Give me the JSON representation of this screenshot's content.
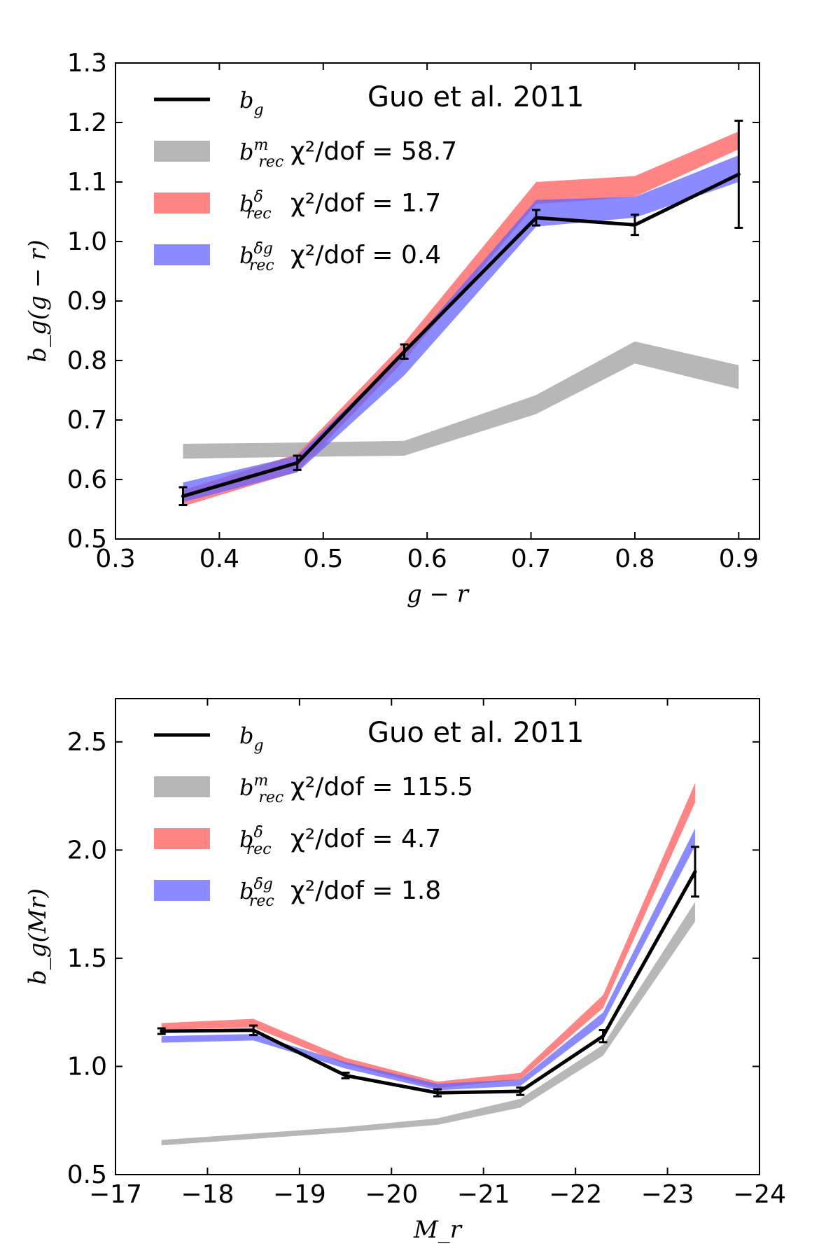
{
  "chart_data": [
    {
      "type": "line",
      "annotation": "Guo et al. 2011",
      "xlabel": "g − r",
      "ylabel": "b_g(g − r)",
      "xlim": [
        0.3,
        0.92
      ],
      "ylim": [
        0.5,
        1.3
      ],
      "xticks": [
        0.3,
        0.4,
        0.5,
        0.6,
        0.7,
        0.8,
        0.9
      ],
      "yticks": [
        0.5,
        0.6,
        0.7,
        0.8,
        0.9,
        1.0,
        1.1,
        1.2,
        1.3
      ],
      "xtick_labels": [
        "0.3",
        "0.4",
        "0.5",
        "0.6",
        "0.7",
        "0.8",
        "0.9"
      ],
      "ytick_labels": [
        "0.5",
        "0.6",
        "0.7",
        "0.8",
        "0.9",
        "1.0",
        "1.1",
        "1.2",
        "1.3"
      ],
      "grid": false,
      "legend_position": "top-left",
      "legend": [
        {
          "key": "bg",
          "symbol": "b",
          "sub": "g",
          "sup": "",
          "stat": ""
        },
        {
          "key": "m",
          "symbol": "b",
          "sub": "rec",
          "sup": "m",
          "stat": "χ²/dof = 58.7"
        },
        {
          "key": "delta",
          "symbol": "b",
          "sub": "rec",
          "sup": "δ̄",
          "stat": "χ²/dof = 1.7"
        },
        {
          "key": "deltag",
          "symbol": "b",
          "sub": "rec",
          "sup": "δ̄g",
          "stat": "χ²/dof = 0.4"
        }
      ],
      "series": [
        {
          "key": "m",
          "color": "#aaaaaa",
          "opacity": 0.85,
          "x": [
            0.365,
            0.475,
            0.578,
            0.705,
            0.8,
            0.9
          ],
          "lower": [
            0.635,
            0.638,
            0.64,
            0.71,
            0.795,
            0.752
          ],
          "upper": [
            0.66,
            0.662,
            0.665,
            0.742,
            0.832,
            0.792
          ]
        },
        {
          "key": "delta",
          "color": "#ff6e6e",
          "opacity": 0.85,
          "x": [
            0.365,
            0.475,
            0.578,
            0.705,
            0.8,
            0.9
          ],
          "lower": [
            0.555,
            0.613,
            0.8,
            1.063,
            1.075,
            1.155
          ],
          "upper": [
            0.582,
            0.643,
            0.83,
            1.1,
            1.11,
            1.185
          ]
        },
        {
          "key": "deltag",
          "color": "#6464ff",
          "opacity": 0.75,
          "x": [
            0.365,
            0.475,
            0.578,
            0.705,
            0.8,
            0.9
          ],
          "lower": [
            0.562,
            0.612,
            0.775,
            1.025,
            1.04,
            1.1
          ],
          "upper": [
            0.595,
            0.64,
            0.815,
            1.07,
            1.075,
            1.145
          ]
        },
        {
          "key": "bg",
          "color": "#000000",
          "x": [
            0.365,
            0.475,
            0.578,
            0.705,
            0.8,
            0.9
          ],
          "y": [
            0.572,
            0.628,
            0.815,
            1.04,
            1.028,
            1.113
          ],
          "yerr": [
            0.015,
            0.012,
            0.012,
            0.013,
            0.017,
            0.09
          ]
        }
      ]
    },
    {
      "type": "line",
      "annotation": "Guo et al. 2011",
      "xlabel": "M_r",
      "ylabel": "b_g(Mr)",
      "xlim": [
        -17,
        -24
      ],
      "ylim": [
        0.5,
        2.7
      ],
      "xticks": [
        -17,
        -18,
        -19,
        -20,
        -21,
        -22,
        -23,
        -24
      ],
      "yticks": [
        0.5,
        1.0,
        1.5,
        2.0,
        2.5
      ],
      "xtick_labels": [
        "−17",
        "−18",
        "−19",
        "−20",
        "−21",
        "−22",
        "−23",
        "−24"
      ],
      "ytick_labels": [
        "0.5",
        "1.0",
        "1.5",
        "2.0",
        "2.5"
      ],
      "grid": false,
      "legend_position": "top-left",
      "legend": [
        {
          "key": "bg",
          "symbol": "b",
          "sub": "g",
          "sup": "",
          "stat": ""
        },
        {
          "key": "m",
          "symbol": "b",
          "sub": "rec",
          "sup": "m",
          "stat": "χ²/dof = 115.5"
        },
        {
          "key": "delta",
          "symbol": "b",
          "sub": "rec",
          "sup": "δ̄",
          "stat": "χ²/dof = 4.7"
        },
        {
          "key": "deltag",
          "symbol": "b",
          "sub": "rec",
          "sup": "δ̄g",
          "stat": "χ²/dof = 1.8"
        }
      ],
      "series": [
        {
          "key": "m",
          "color": "#aaaaaa",
          "opacity": 0.85,
          "x": [
            -17.5,
            -18.5,
            -19.5,
            -20.5,
            -21.4,
            -22.3,
            -23.3
          ],
          "lower": [
            0.635,
            0.665,
            0.695,
            0.73,
            0.81,
            1.05,
            1.67
          ],
          "upper": [
            0.66,
            0.69,
            0.72,
            0.76,
            0.85,
            1.1,
            1.76
          ]
        },
        {
          "key": "delta",
          "color": "#ff6e6e",
          "opacity": 0.85,
          "x": [
            -17.5,
            -18.5,
            -19.5,
            -20.5,
            -21.4,
            -22.3,
            -23.3
          ],
          "lower": [
            1.17,
            1.18,
            1.01,
            0.9,
            0.94,
            1.27,
            2.22
          ],
          "upper": [
            1.2,
            1.22,
            1.04,
            0.93,
            0.97,
            1.33,
            2.31
          ]
        },
        {
          "key": "deltag",
          "color": "#6464ff",
          "opacity": 0.75,
          "x": [
            -17.5,
            -18.5,
            -19.5,
            -20.5,
            -21.4,
            -22.3,
            -23.3
          ],
          "lower": [
            1.11,
            1.12,
            0.99,
            0.89,
            0.91,
            1.2,
            2.02
          ],
          "upper": [
            1.14,
            1.15,
            1.02,
            0.92,
            0.94,
            1.25,
            2.1
          ]
        },
        {
          "key": "bg",
          "color": "#000000",
          "x": [
            -17.5,
            -18.5,
            -19.5,
            -20.5,
            -21.4,
            -22.3,
            -23.3
          ],
          "y": [
            1.163,
            1.167,
            0.958,
            0.878,
            0.885,
            1.14,
            1.9
          ],
          "yerr": [
            0.013,
            0.022,
            0.013,
            0.016,
            0.017,
            0.028,
            0.115
          ]
        }
      ]
    }
  ]
}
